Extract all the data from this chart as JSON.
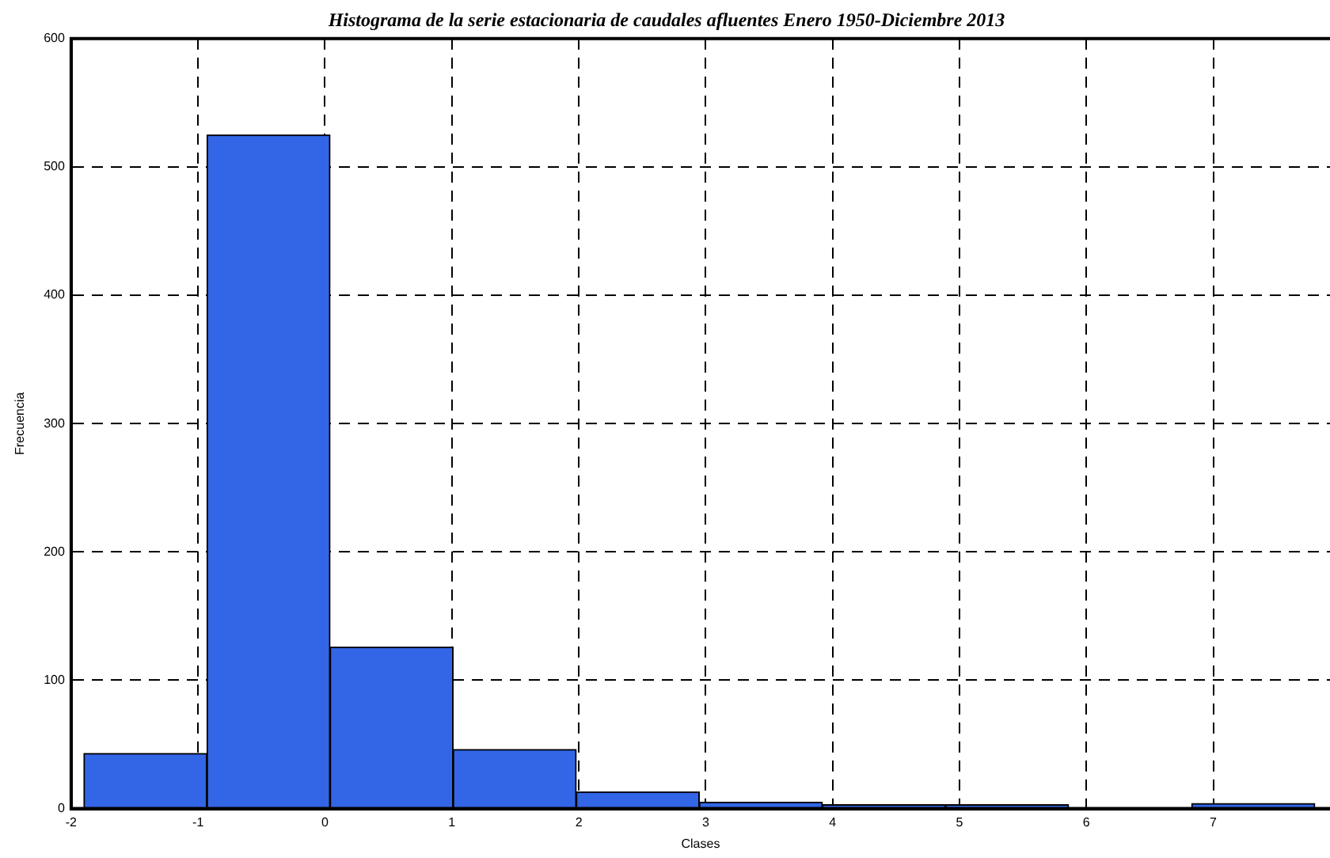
{
  "chart_data": {
    "type": "histogram",
    "title": "Histograma de la serie estacionaria de caudales afluentes Enero 1950-Diciembre 2013",
    "xlabel": "Clases",
    "ylabel": "Frecuencia",
    "bins": [
      -1.9,
      -0.93,
      0.04,
      1.01,
      1.98,
      2.95,
      3.92,
      4.89,
      5.86,
      6.83,
      7.8
    ],
    "values": [
      43,
      525,
      126,
      46,
      13,
      5,
      3,
      3,
      0,
      4
    ],
    "color": "#3366e6",
    "xlim": [
      -2,
      7.92
    ],
    "xticks": [
      -2,
      -1,
      0,
      1,
      2,
      3,
      4,
      5,
      6,
      7
    ],
    "ylim": [
      0,
      600
    ],
    "yticks": [
      0,
      100,
      200,
      300,
      400,
      500,
      600
    ],
    "grid": true,
    "legend": false
  }
}
